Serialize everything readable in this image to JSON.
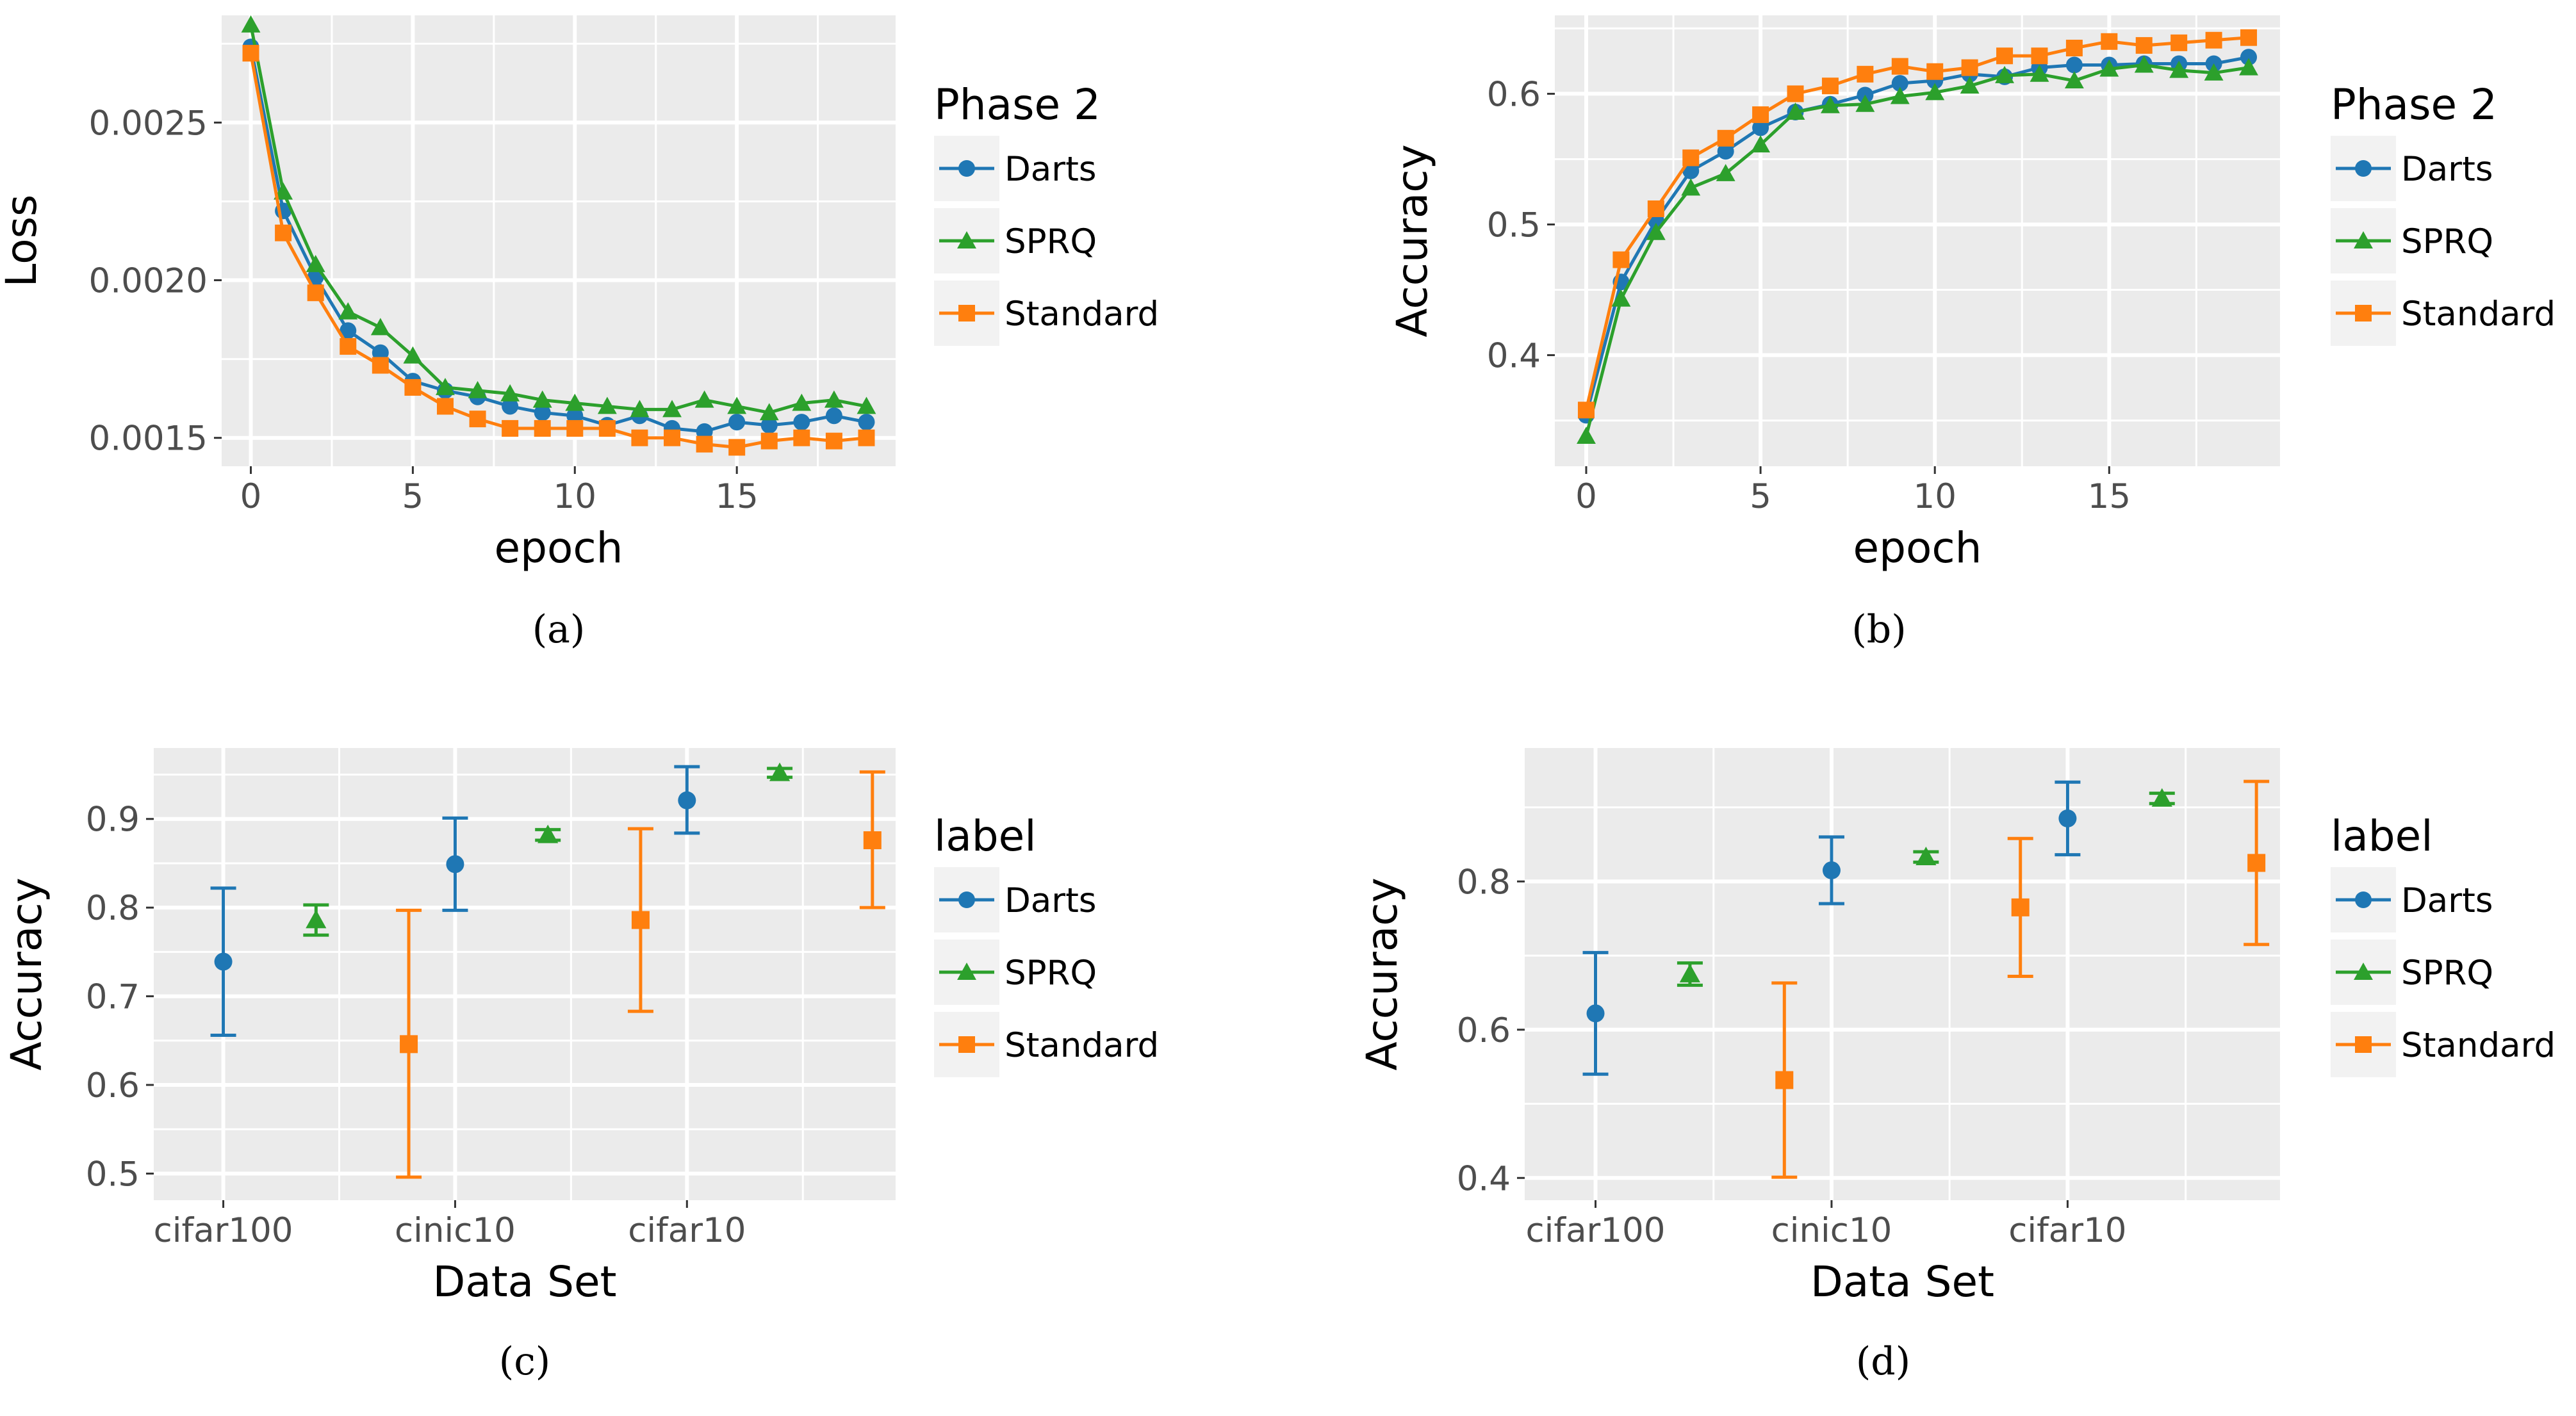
{
  "colors": {
    "darts": "#1f77b4",
    "sprq": "#2ca02c",
    "standard": "#ff7f0e",
    "panel_bg": "#ebebeb",
    "grid": "#ffffff",
    "axis_text": "#4d4d4d",
    "text": "#000000"
  },
  "chart_data": [
    {
      "type": "line",
      "caption": "(a)",
      "xlabel": "epoch",
      "ylabel": "Loss",
      "x": [
        0,
        1,
        2,
        3,
        4,
        5,
        6,
        7,
        8,
        9,
        10,
        11,
        12,
        13,
        14,
        15,
        16,
        17,
        18,
        19
      ],
      "xlim": [
        -0.9,
        19.9
      ],
      "ylim": [
        0.00141,
        0.00284
      ],
      "xticks": [
        0,
        5,
        10,
        15
      ],
      "xtick_labels": [
        "0",
        "5",
        "10",
        "15"
      ],
      "yticks": [
        0.0015,
        0.002,
        0.0025
      ],
      "ytick_labels": [
        "0.0015",
        "0.0020",
        "0.0025"
      ],
      "grid": true,
      "legend": {
        "title": "Phase 2",
        "position": "right",
        "entries": [
          "Darts",
          "SPRQ",
          "Standard"
        ]
      },
      "series": [
        {
          "name": "Darts",
          "marker": "circle",
          "color_key": "darts",
          "values": [
            0.00274,
            0.00222,
            0.00201,
            0.00184,
            0.00177,
            0.00168,
            0.00165,
            0.00163,
            0.0016,
            0.00158,
            0.00157,
            0.00154,
            0.00157,
            0.00153,
            0.00152,
            0.00155,
            0.00154,
            0.00155,
            0.00157,
            0.00155
          ]
        },
        {
          "name": "SPRQ",
          "marker": "triangle",
          "color_key": "sprq",
          "values": [
            0.00281,
            0.00228,
            0.00205,
            0.0019,
            0.00185,
            0.00176,
            0.00166,
            0.00165,
            0.00164,
            0.00162,
            0.00161,
            0.0016,
            0.00159,
            0.00159,
            0.00162,
            0.0016,
            0.00158,
            0.00161,
            0.00162,
            0.0016
          ]
        },
        {
          "name": "Standard",
          "marker": "square",
          "color_key": "standard",
          "values": [
            0.00272,
            0.00215,
            0.00196,
            0.00179,
            0.00173,
            0.00166,
            0.0016,
            0.00156,
            0.00153,
            0.00153,
            0.00153,
            0.00153,
            0.0015,
            0.0015,
            0.00148,
            0.00147,
            0.00149,
            0.0015,
            0.00149,
            0.0015
          ]
        }
      ]
    },
    {
      "type": "line",
      "caption": "(b)",
      "xlabel": "epoch",
      "ylabel": "Accuracy",
      "x": [
        0,
        1,
        2,
        3,
        4,
        5,
        6,
        7,
        8,
        9,
        10,
        11,
        12,
        13,
        14,
        15,
        16,
        17,
        18,
        19
      ],
      "xlim": [
        -0.9,
        19.9
      ],
      "ylim": [
        0.315,
        0.66
      ],
      "xticks": [
        0,
        5,
        10,
        15
      ],
      "xtick_labels": [
        "0",
        "5",
        "10",
        "15"
      ],
      "yticks": [
        0.4,
        0.5,
        0.6
      ],
      "ytick_labels": [
        "0.4",
        "0.5",
        "0.6"
      ],
      "grid": true,
      "legend": {
        "title": "Phase 2",
        "position": "right",
        "entries": [
          "Darts",
          "SPRQ",
          "Standard"
        ]
      },
      "series": [
        {
          "name": "Darts",
          "marker": "circle",
          "color_key": "darts",
          "values": [
            0.354,
            0.456,
            0.503,
            0.541,
            0.556,
            0.574,
            0.586,
            0.592,
            0.599,
            0.608,
            0.61,
            0.615,
            0.613,
            0.62,
            0.622,
            0.622,
            0.623,
            0.623,
            0.623,
            0.628
          ]
        },
        {
          "name": "SPRQ",
          "marker": "triangle",
          "color_key": "sprq",
          "values": [
            0.338,
            0.443,
            0.494,
            0.528,
            0.539,
            0.561,
            0.586,
            0.591,
            0.592,
            0.598,
            0.601,
            0.606,
            0.614,
            0.615,
            0.61,
            0.619,
            0.622,
            0.618,
            0.616,
            0.62
          ]
        },
        {
          "name": "Standard",
          "marker": "square",
          "color_key": "standard",
          "values": [
            0.358,
            0.473,
            0.512,
            0.551,
            0.566,
            0.584,
            0.6,
            0.606,
            0.615,
            0.621,
            0.617,
            0.62,
            0.629,
            0.629,
            0.635,
            0.64,
            0.637,
            0.639,
            0.641,
            0.643
          ]
        }
      ]
    },
    {
      "type": "errorbar",
      "caption": "(c)",
      "xlabel": "Data Set",
      "ylabel": "Accuracy",
      "categories": [
        "cifar100",
        "cinic10",
        "cifar10"
      ],
      "ylim": [
        0.47,
        0.98
      ],
      "yticks": [
        0.5,
        0.6,
        0.7,
        0.8,
        0.9
      ],
      "ytick_labels": [
        "0.5",
        "0.6",
        "0.7",
        "0.8",
        "0.9"
      ],
      "grid": true,
      "legend": {
        "title": "label",
        "position": "right",
        "entries": [
          "Darts",
          "SPRQ",
          "Standard"
        ]
      },
      "series": [
        {
          "name": "Darts",
          "marker": "circle",
          "color_key": "darts",
          "mean": [
            0.739,
            0.849,
            0.921
          ],
          "low": [
            0.656,
            0.797,
            0.884
          ],
          "high": [
            0.822,
            0.901,
            0.959
          ]
        },
        {
          "name": "SPRQ",
          "marker": "triangle",
          "color_key": "sprq",
          "mean": [
            0.786,
            0.882,
            0.952
          ],
          "low": [
            0.769,
            0.876,
            0.947
          ],
          "high": [
            0.803,
            0.888,
            0.957
          ]
        },
        {
          "name": "Standard",
          "marker": "square",
          "color_key": "standard",
          "mean": [
            0.646,
            0.786,
            0.876
          ],
          "low": [
            0.496,
            0.683,
            0.8
          ],
          "high": [
            0.797,
            0.889,
            0.953
          ]
        }
      ]
    },
    {
      "type": "errorbar",
      "caption": "(d)",
      "xlabel": "Data Set",
      "ylabel": "Accuracy",
      "categories": [
        "cifar100",
        "cinic10",
        "cifar10"
      ],
      "ylim": [
        0.37,
        0.98
      ],
      "yticks": [
        0.4,
        0.6,
        0.8
      ],
      "ytick_labels": [
        "0.4",
        "0.6",
        "0.8"
      ],
      "grid": true,
      "legend": {
        "title": "label",
        "position": "right",
        "entries": [
          "Darts",
          "SPRQ",
          "Standard"
        ]
      },
      "series": [
        {
          "name": "Darts",
          "marker": "circle",
          "color_key": "darts",
          "mean": [
            0.622,
            0.815,
            0.885
          ],
          "low": [
            0.54,
            0.77,
            0.836
          ],
          "high": [
            0.704,
            0.86,
            0.934
          ]
        },
        {
          "name": "SPRQ",
          "marker": "triangle",
          "color_key": "sprq",
          "mean": [
            0.675,
            0.833,
            0.912
          ],
          "low": [
            0.66,
            0.826,
            0.905
          ],
          "high": [
            0.69,
            0.84,
            0.919
          ]
        },
        {
          "name": "Standard",
          "marker": "square",
          "color_key": "standard",
          "mean": [
            0.532,
            0.765,
            0.825
          ],
          "low": [
            0.401,
            0.672,
            0.715
          ],
          "high": [
            0.663,
            0.858,
            0.935
          ]
        }
      ]
    }
  ]
}
